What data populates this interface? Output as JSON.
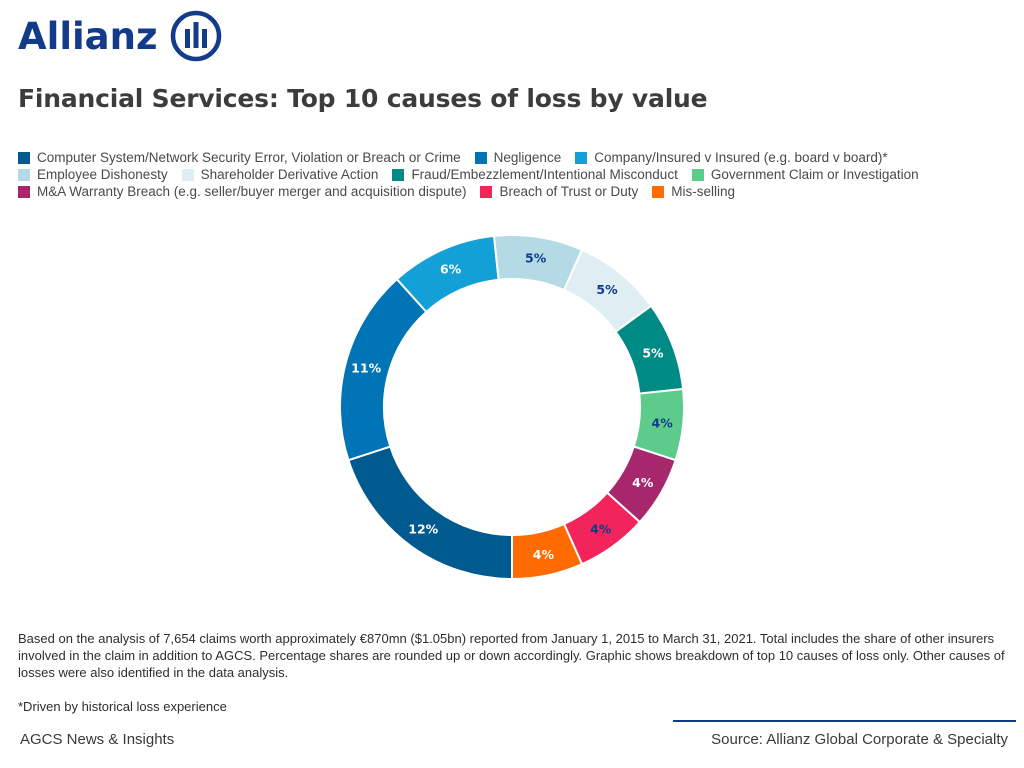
{
  "brand": {
    "name": "Allianz",
    "logo": "allianz-eagle-emblem"
  },
  "chart_data": {
    "type": "pie",
    "title": "Financial Services: Top 10 causes of loss by value",
    "donut": true,
    "legend_position": "top",
    "categories": [
      "Computer System/Network Security Error, Violation or Breach or Crime",
      "Negligence",
      "Company/Insured v Insured (e.g. board v board)*",
      "Employee Dishonesty",
      "Shareholder Derivative Action",
      "Fraud/Embezzlement/Intentional Misconduct",
      "Government Claim or Investigation",
      "M&A Warranty Breach (e.g. seller/buyer merger and acquisition dispute)",
      "Breach of Trust or Duty",
      "Mis-selling"
    ],
    "values": [
      12,
      11,
      6,
      5,
      5,
      5,
      4,
      4,
      4,
      4
    ],
    "value_labels": [
      "12%",
      "11%",
      "6%",
      "5%",
      "5%",
      "5%",
      "4%",
      "4%",
      "4%",
      "4%"
    ],
    "colors": [
      "#005a8f",
      "#0174b5",
      "#12a0d6",
      "#b4dae6",
      "#dfeef2",
      "#008a86",
      "#5dcc8a",
      "#a6276c",
      "#f2245c",
      "#ff6b00"
    ],
    "label_colors": [
      "#ffffff",
      "#ffffff",
      "#ffffff",
      "#123b8a",
      "#123b8a",
      "#ffffff",
      "#123b8a",
      "#ffffff",
      "#123b8a",
      "#ffffff"
    ],
    "start_slice": "Computer System/Network Security Error, Violation or Breach or Crime",
    "start_angle_deg": 180,
    "direction": "clockwise"
  },
  "notes": {
    "text": "Based on the analysis of 7,654 claims worth approximately €870mn ($1.05bn) reported from January 1, 2015 to March 31, 2021. Total includes the share of other insurers involved in the claim in addition to AGCS. Percentage shares are rounded up or down accordingly. Graphic shows breakdown of top 10 causes of loss only. Other causes of losses were also identified in the data analysis.",
    "asterisk": "*Driven by historical loss experience"
  },
  "footer": {
    "left": "AGCS News & Insights",
    "right": "Source: Allianz Global Corporate & Specialty"
  }
}
